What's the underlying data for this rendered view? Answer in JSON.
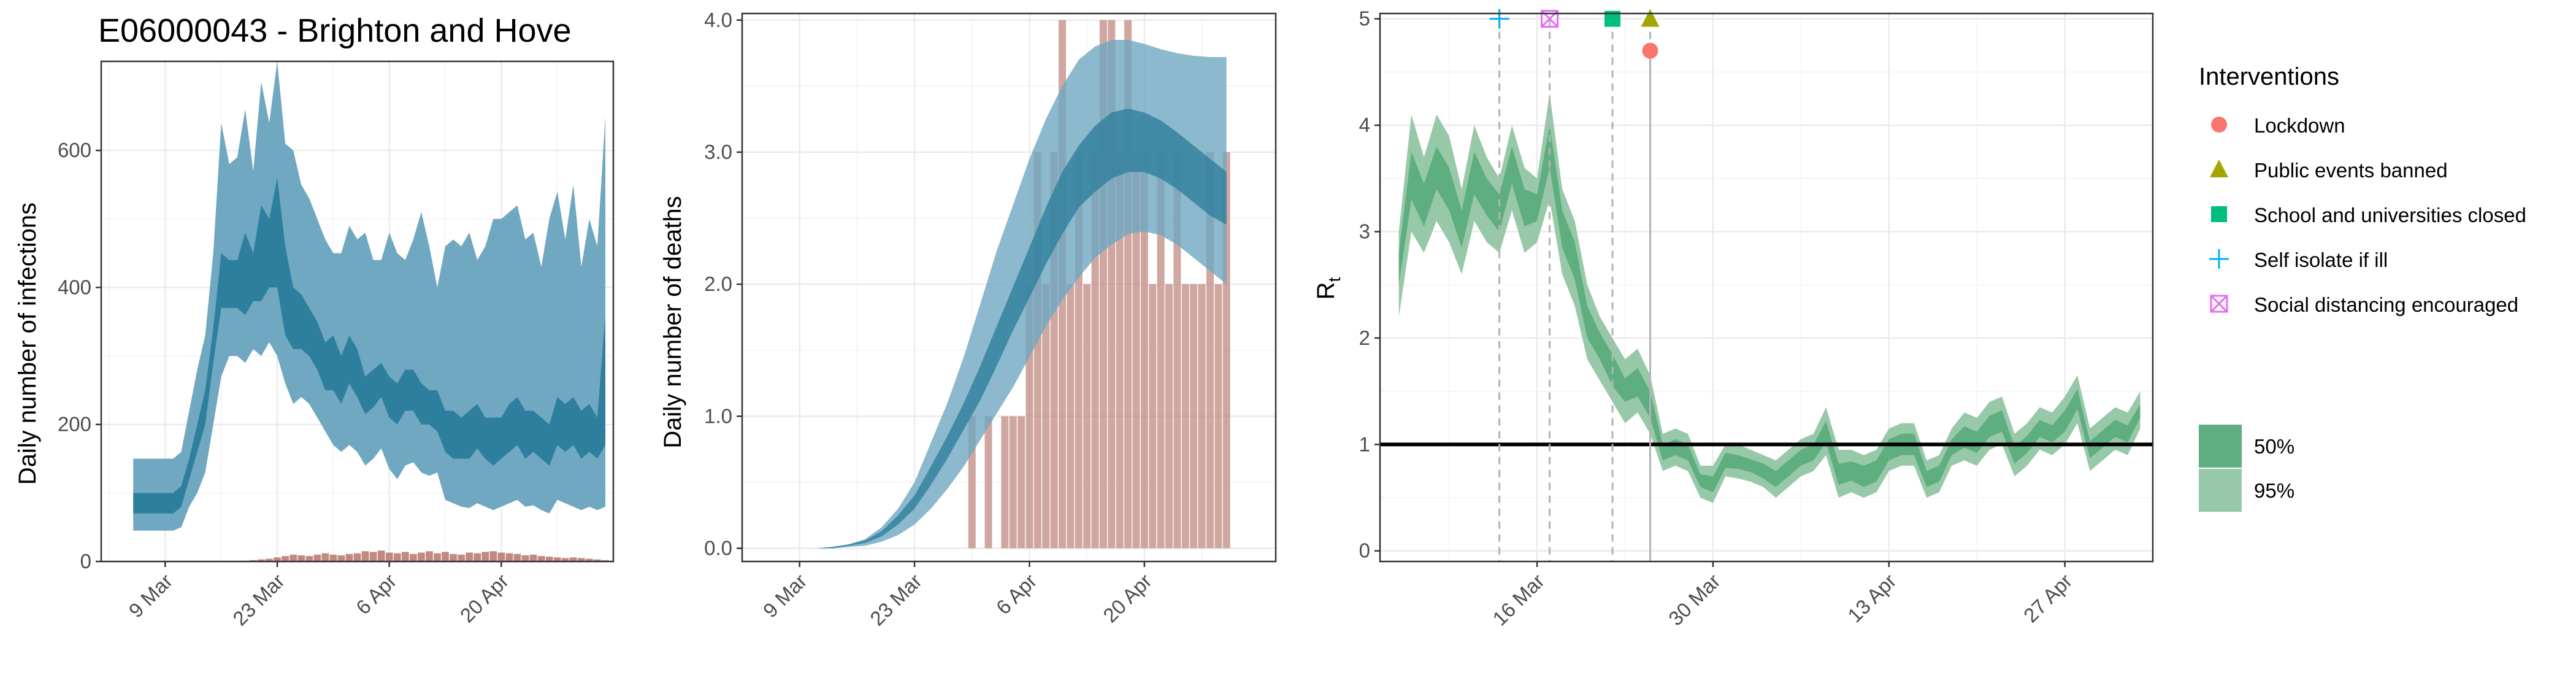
{
  "colors": {
    "bars": "#c08a80",
    "band95_blue": "#6fa8c0",
    "band50_blue": "#2e7f9e",
    "band95_green": "#97c9a8",
    "band50_green": "#5fae80",
    "lockdown": "#f8766d",
    "public_events": "#a3a500",
    "school": "#00bf7d",
    "self_isolate": "#00b0f6",
    "social_distancing": "#e76bf3"
  },
  "chart_data": [
    {
      "type": "area",
      "title": "E06000043 - Brighton and Hove",
      "ylabel": "Daily number of infections",
      "xlabel": "",
      "ylim": [
        0,
        730
      ],
      "y_ticks": [
        0,
        200,
        400,
        600
      ],
      "y_tick_labels": [
        "0",
        "200",
        "400",
        "600"
      ],
      "x_start": "2020-03-05",
      "x_ticks": [
        {
          "day": 4,
          "label": "9 Mar"
        },
        {
          "day": 18,
          "label": "23 Mar"
        },
        {
          "day": 32,
          "label": "6 Apr"
        },
        {
          "day": 46,
          "label": "20 Apr"
        }
      ],
      "x_range_days": [
        -4,
        60
      ],
      "x": [
        0,
        1,
        2,
        3,
        4,
        5,
        6,
        7,
        8,
        9,
        10,
        11,
        12,
        13,
        14,
        15,
        16,
        17,
        18,
        19,
        20,
        21,
        22,
        23,
        24,
        25,
        26,
        27,
        28,
        29,
        30,
        31,
        32,
        33,
        34,
        35,
        36,
        37,
        38,
        39,
        40,
        41,
        42,
        43,
        44,
        45,
        46,
        47,
        48,
        49,
        50,
        51,
        52,
        53,
        54,
        55,
        56,
        57,
        58,
        59
      ],
      "band95_low": [
        45,
        45,
        45,
        45,
        45,
        45,
        50,
        80,
        100,
        130,
        200,
        270,
        300,
        300,
        290,
        310,
        300,
        320,
        300,
        260,
        230,
        240,
        230,
        210,
        190,
        170,
        160,
        170,
        160,
        140,
        150,
        165,
        135,
        120,
        140,
        145,
        130,
        125,
        130,
        90,
        85,
        80,
        78,
        85,
        80,
        75,
        80,
        85,
        90,
        80,
        82,
        75,
        70,
        90,
        85,
        80,
        75,
        80,
        75,
        80
      ],
      "band95_high": [
        150,
        150,
        150,
        150,
        150,
        150,
        160,
        220,
        280,
        330,
        450,
        640,
        580,
        590,
        660,
        570,
        700,
        640,
        730,
        610,
        600,
        550,
        530,
        500,
        470,
        450,
        450,
        490,
        470,
        480,
        440,
        440,
        480,
        450,
        440,
        470,
        510,
        460,
        400,
        460,
        470,
        460,
        480,
        440,
        460,
        500,
        500,
        510,
        520,
        470,
        480,
        430,
        500,
        540,
        470,
        550,
        430,
        500,
        460,
        650
      ],
      "band50_low": [
        70,
        70,
        70,
        70,
        70,
        70,
        80,
        120,
        160,
        200,
        290,
        370,
        370,
        370,
        360,
        380,
        380,
        400,
        400,
        330,
        310,
        310,
        300,
        280,
        250,
        250,
        230,
        260,
        240,
        215,
        225,
        240,
        210,
        200,
        220,
        220,
        200,
        200,
        190,
        160,
        150,
        150,
        150,
        165,
        150,
        140,
        150,
        160,
        170,
        150,
        160,
        150,
        140,
        170,
        160,
        170,
        150,
        160,
        150,
        170
      ],
      "band50_high": [
        100,
        100,
        100,
        100,
        100,
        100,
        110,
        150,
        200,
        250,
        340,
        450,
        440,
        440,
        480,
        450,
        520,
        500,
        560,
        460,
        400,
        390,
        370,
        350,
        320,
        330,
        300,
        330,
        310,
        270,
        280,
        290,
        270,
        260,
        280,
        280,
        260,
        250,
        250,
        220,
        220,
        210,
        220,
        230,
        210,
        210,
        210,
        230,
        240,
        220,
        220,
        210,
        200,
        240,
        230,
        240,
        220,
        230,
        210,
        360
      ],
      "bars": [
        0,
        0,
        0,
        0,
        0,
        0,
        0,
        0,
        0,
        0,
        0,
        0,
        0,
        0,
        1,
        2,
        3,
        4,
        6,
        8,
        10,
        9,
        8,
        10,
        12,
        10,
        9,
        11,
        12,
        15,
        14,
        16,
        13,
        12,
        14,
        11,
        13,
        15,
        12,
        14,
        11,
        10,
        13,
        12,
        14,
        15,
        13,
        12,
        11,
        9,
        10,
        8,
        7,
        6,
        5,
        6,
        5,
        4,
        3,
        2
      ]
    },
    {
      "type": "area",
      "title": "",
      "ylabel": "Daily number of deaths",
      "xlabel": "",
      "ylim": [
        -0.1,
        4.05
      ],
      "y_ticks": [
        0,
        1,
        2,
        3,
        4
      ],
      "y_tick_labels": [
        "0.0",
        "1.0",
        "2.0",
        "3.0",
        "4.0"
      ],
      "x_start": "2020-03-05",
      "x_ticks": [
        {
          "day": 4,
          "label": "9 Mar"
        },
        {
          "day": 18,
          "label": "23 Mar"
        },
        {
          "day": 32,
          "label": "6 Apr"
        },
        {
          "day": 46,
          "label": "20 Apr"
        }
      ],
      "x_range_days": [
        -3,
        62
      ],
      "x": [
        6,
        8,
        10,
        12,
        14,
        16,
        18,
        20,
        22,
        24,
        26,
        28,
        30,
        32,
        34,
        36,
        38,
        40,
        42,
        44,
        46,
        48,
        50,
        52,
        54,
        56
      ],
      "band95_low": [
        0,
        0,
        0.01,
        0.02,
        0.05,
        0.1,
        0.18,
        0.3,
        0.45,
        0.62,
        0.82,
        1.02,
        1.22,
        1.45,
        1.68,
        1.88,
        2.05,
        2.2,
        2.3,
        2.38,
        2.4,
        2.37,
        2.3,
        2.2,
        2.1,
        2.0
      ],
      "band95_high": [
        0,
        0.01,
        0.03,
        0.07,
        0.16,
        0.3,
        0.5,
        0.8,
        1.1,
        1.45,
        1.85,
        2.25,
        2.6,
        2.95,
        3.25,
        3.5,
        3.7,
        3.8,
        3.85,
        3.85,
        3.82,
        3.78,
        3.75,
        3.73,
        3.72,
        3.72
      ],
      "band50_low": [
        0,
        0,
        0.02,
        0.04,
        0.09,
        0.18,
        0.3,
        0.48,
        0.68,
        0.9,
        1.12,
        1.38,
        1.65,
        1.9,
        2.15,
        2.38,
        2.58,
        2.7,
        2.8,
        2.85,
        2.85,
        2.8,
        2.72,
        2.62,
        2.52,
        2.45
      ],
      "band50_high": [
        0,
        0.01,
        0.03,
        0.06,
        0.13,
        0.25,
        0.4,
        0.62,
        0.85,
        1.1,
        1.38,
        1.68,
        1.98,
        2.28,
        2.58,
        2.85,
        3.05,
        3.2,
        3.3,
        3.33,
        3.3,
        3.24,
        3.15,
        3.05,
        2.95,
        2.85
      ],
      "bars_x": [
        24,
        25,
        26,
        27,
        28,
        29,
        30,
        31,
        32,
        33,
        34,
        35,
        36,
        37,
        38,
        39,
        40,
        41,
        42,
        43,
        44,
        45,
        46,
        47,
        48,
        49,
        50,
        51,
        52,
        53,
        54,
        55,
        56
      ],
      "bars": [
        0,
        1,
        0,
        1,
        0,
        1,
        1,
        1,
        2,
        3,
        2,
        3,
        4,
        2,
        3,
        2,
        3,
        4,
        4,
        3,
        4,
        3,
        3,
        2,
        3,
        2,
        3,
        2,
        2,
        2,
        3,
        2,
        3
      ]
    },
    {
      "type": "area",
      "title": "",
      "ylabel": "Rt",
      "ylabel_main": "R",
      "ylabel_sub": "t",
      "xlabel": "",
      "ylim": [
        -0.1,
        5.05
      ],
      "y_ticks": [
        0,
        1,
        2,
        3,
        4,
        5
      ],
      "y_tick_labels": [
        "0",
        "1",
        "2",
        "3",
        "4",
        "5"
      ],
      "x_start": "2020-03-05",
      "x_ticks": [
        {
          "day": 11,
          "label": "16 Mar"
        },
        {
          "day": 25,
          "label": "30 Mar"
        },
        {
          "day": 39,
          "label": "13 Apr"
        },
        {
          "day": 53,
          "label": "27 Apr"
        }
      ],
      "x_range_days": [
        -1.5,
        60
      ],
      "hline": 1,
      "x": [
        0,
        1,
        2,
        3,
        4,
        5,
        6,
        7,
        8,
        9,
        10,
        11,
        12,
        13,
        14,
        15,
        16,
        17,
        18,
        19,
        20,
        21,
        22,
        23,
        24,
        25,
        26,
        27,
        28,
        29,
        30,
        31,
        32,
        33,
        34,
        35,
        36,
        37,
        38,
        39,
        40,
        41,
        42,
        43,
        44,
        45,
        46,
        47,
        48,
        49,
        50,
        51,
        52,
        53,
        54,
        55,
        56,
        57,
        58,
        59
      ],
      "band95_low": [
        2.2,
        3.0,
        2.8,
        3.1,
        2.9,
        2.6,
        3.1,
        2.9,
        2.8,
        3.2,
        2.8,
        2.9,
        3.3,
        2.6,
        2.3,
        1.8,
        1.6,
        1.4,
        1.2,
        1.3,
        1.1,
        0.75,
        0.8,
        0.75,
        0.5,
        0.45,
        0.7,
        0.68,
        0.65,
        0.6,
        0.5,
        0.6,
        0.7,
        0.75,
        0.9,
        0.5,
        0.55,
        0.5,
        0.55,
        0.75,
        0.8,
        0.8,
        0.5,
        0.55,
        0.8,
        0.85,
        0.8,
        0.95,
        1.0,
        0.7,
        0.8,
        0.95,
        0.9,
        1.0,
        1.2,
        0.75,
        0.85,
        0.95,
        0.9,
        1.15
      ],
      "band95_high": [
        3.0,
        4.1,
        3.7,
        4.1,
        3.9,
        3.4,
        4.0,
        3.7,
        3.5,
        4.0,
        3.6,
        3.5,
        4.3,
        3.4,
        3.1,
        2.5,
        2.2,
        2.0,
        1.8,
        1.9,
        1.65,
        1.1,
        1.15,
        1.1,
        0.8,
        0.8,
        1.0,
        1.0,
        0.95,
        0.9,
        0.85,
        0.95,
        1.05,
        1.1,
        1.35,
        0.95,
        0.95,
        0.9,
        0.95,
        1.15,
        1.2,
        1.2,
        0.85,
        0.9,
        1.15,
        1.3,
        1.25,
        1.4,
        1.45,
        1.1,
        1.2,
        1.35,
        1.3,
        1.45,
        1.65,
        1.15,
        1.25,
        1.35,
        1.3,
        1.5
      ],
      "band50_low": [
        2.5,
        3.3,
        3.05,
        3.4,
        3.2,
        2.85,
        3.35,
        3.15,
        3.0,
        3.45,
        3.05,
        3.1,
        3.6,
        2.85,
        2.55,
        2.0,
        1.8,
        1.55,
        1.4,
        1.45,
        1.25,
        0.85,
        0.9,
        0.85,
        0.6,
        0.55,
        0.78,
        0.77,
        0.74,
        0.68,
        0.6,
        0.7,
        0.8,
        0.85,
        1.02,
        0.62,
        0.66,
        0.6,
        0.65,
        0.85,
        0.9,
        0.9,
        0.6,
        0.65,
        0.9,
        0.97,
        0.92,
        1.07,
        1.12,
        0.82,
        0.92,
        1.07,
        1.02,
        1.12,
        1.33,
        0.87,
        0.97,
        1.07,
        1.02,
        1.25
      ],
      "band50_high": [
        2.8,
        3.75,
        3.45,
        3.8,
        3.6,
        3.2,
        3.75,
        3.5,
        3.35,
        3.8,
        3.4,
        3.35,
        4.0,
        3.2,
        2.9,
        2.3,
        2.05,
        1.85,
        1.62,
        1.72,
        1.5,
        1.0,
        1.05,
        1.0,
        0.72,
        0.7,
        0.92,
        0.9,
        0.86,
        0.82,
        0.75,
        0.85,
        0.95,
        1.0,
        1.22,
        0.82,
        0.84,
        0.8,
        0.85,
        1.05,
        1.1,
        1.1,
        0.75,
        0.8,
        1.05,
        1.17,
        1.12,
        1.27,
        1.32,
        0.98,
        1.08,
        1.23,
        1.18,
        1.32,
        1.52,
        1.03,
        1.13,
        1.23,
        1.18,
        1.38
      ],
      "interventions": [
        {
          "name": "Self isolate if ill",
          "day": 8,
          "shape": "plus",
          "color": "#00b0f6",
          "y": 5.0
        },
        {
          "name": "Social distancing encouraged",
          "day": 12,
          "shape": "boxx",
          "color": "#e76bf3",
          "y": 5.0
        },
        {
          "name": "School and universities closed",
          "day": 17,
          "shape": "square",
          "color": "#00bf7d",
          "y": 5.0
        },
        {
          "name": "Public events banned",
          "day": 20,
          "shape": "triangle",
          "color": "#a3a500",
          "y": 5.0
        },
        {
          "name": "Lockdown",
          "day": 20,
          "shape": "circle",
          "color": "#f8766d",
          "y": 4.7
        }
      ]
    }
  ],
  "legend": {
    "title": "Interventions",
    "items": [
      {
        "label": "Lockdown",
        "shape": "circle",
        "color": "#f8766d"
      },
      {
        "label": "Public events banned",
        "shape": "triangle",
        "color": "#a3a500"
      },
      {
        "label": "School and universities closed",
        "shape": "square",
        "color": "#00bf7d"
      },
      {
        "label": "Self isolate if ill",
        "shape": "plus",
        "color": "#00b0f6"
      },
      {
        "label": "Social distancing encouraged",
        "shape": "boxx",
        "color": "#e76bf3"
      }
    ],
    "bands": [
      {
        "label": "50%",
        "color": "#5fae80"
      },
      {
        "label": "95%",
        "color": "#97c9a8"
      }
    ]
  }
}
